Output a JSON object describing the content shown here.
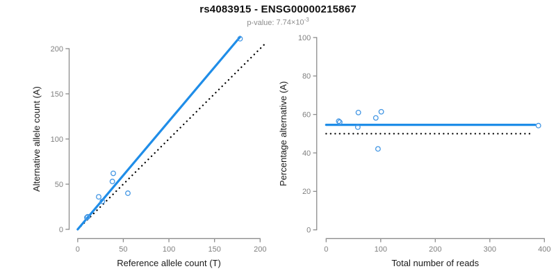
{
  "figure": {
    "title": "rs4083915 - ENSG00000215867",
    "p_value": {
      "label": "p-value:",
      "mantissa": "7.74",
      "times": "×",
      "base": "10",
      "exponent": "-3"
    }
  },
  "colors": {
    "fit_line_blue": "#1f8de8",
    "point_blue": "#4497e4",
    "reference_black": "#000000",
    "axis_gray": "#8c8c8c",
    "tick_label_gray": "#7f7f7f",
    "axis_label_black": "#1a1a1a",
    "title_black": "#111111",
    "subtitle_gray": "#8c8c8c"
  },
  "chart_data": [
    {
      "type": "scatter",
      "name": "allele-counts-plot",
      "title": "rs4083915 - ENSG00000215867",
      "subtitle": "p-value: 7.74×10^-3",
      "xlabel": "Reference allele count (T)",
      "ylabel": "Alternative allele count (A)",
      "xlim": [
        0,
        200
      ],
      "ylim": [
        0,
        200
      ],
      "xticks": [
        0,
        50,
        100,
        150,
        200
      ],
      "yticks": [
        0,
        50,
        100,
        150,
        200
      ],
      "grid": false,
      "legend": "none",
      "points_x": [
        10,
        11,
        23,
        27,
        38,
        39,
        55,
        178
      ],
      "points_y": [
        13,
        14,
        36,
        31,
        53,
        62,
        40,
        211
      ],
      "fit_line": {
        "x1": 0,
        "y1": 0,
        "x2": 178,
        "y2": 213
      },
      "reference_line": {
        "style": "dotted",
        "x1": 0,
        "y1": 0,
        "x2": 207,
        "y2": 207
      }
    },
    {
      "type": "scatter",
      "name": "percentage-alternative-plot",
      "xlabel": "Total number of reads",
      "ylabel": "Percentage alternative (A)",
      "xlim": [
        0,
        400
      ],
      "ylim": [
        0,
        100
      ],
      "xticks": [
        0,
        100,
        200,
        300,
        400
      ],
      "yticks": [
        0,
        20,
        40,
        60,
        80,
        100
      ],
      "grid": false,
      "legend": "none",
      "points_x": [
        23,
        25,
        59,
        58,
        91,
        101,
        95,
        389
      ],
      "points_y": [
        56.5,
        56.0,
        61.0,
        53.4,
        58.2,
        61.4,
        42.1,
        54.2
      ],
      "fit_line": {
        "x1": 0,
        "y1": 54.6,
        "x2": 383,
        "y2": 54.6
      },
      "reference_line": {
        "style": "dotted",
        "x1": 0,
        "y1": 50,
        "x2": 380,
        "y2": 50
      }
    }
  ]
}
